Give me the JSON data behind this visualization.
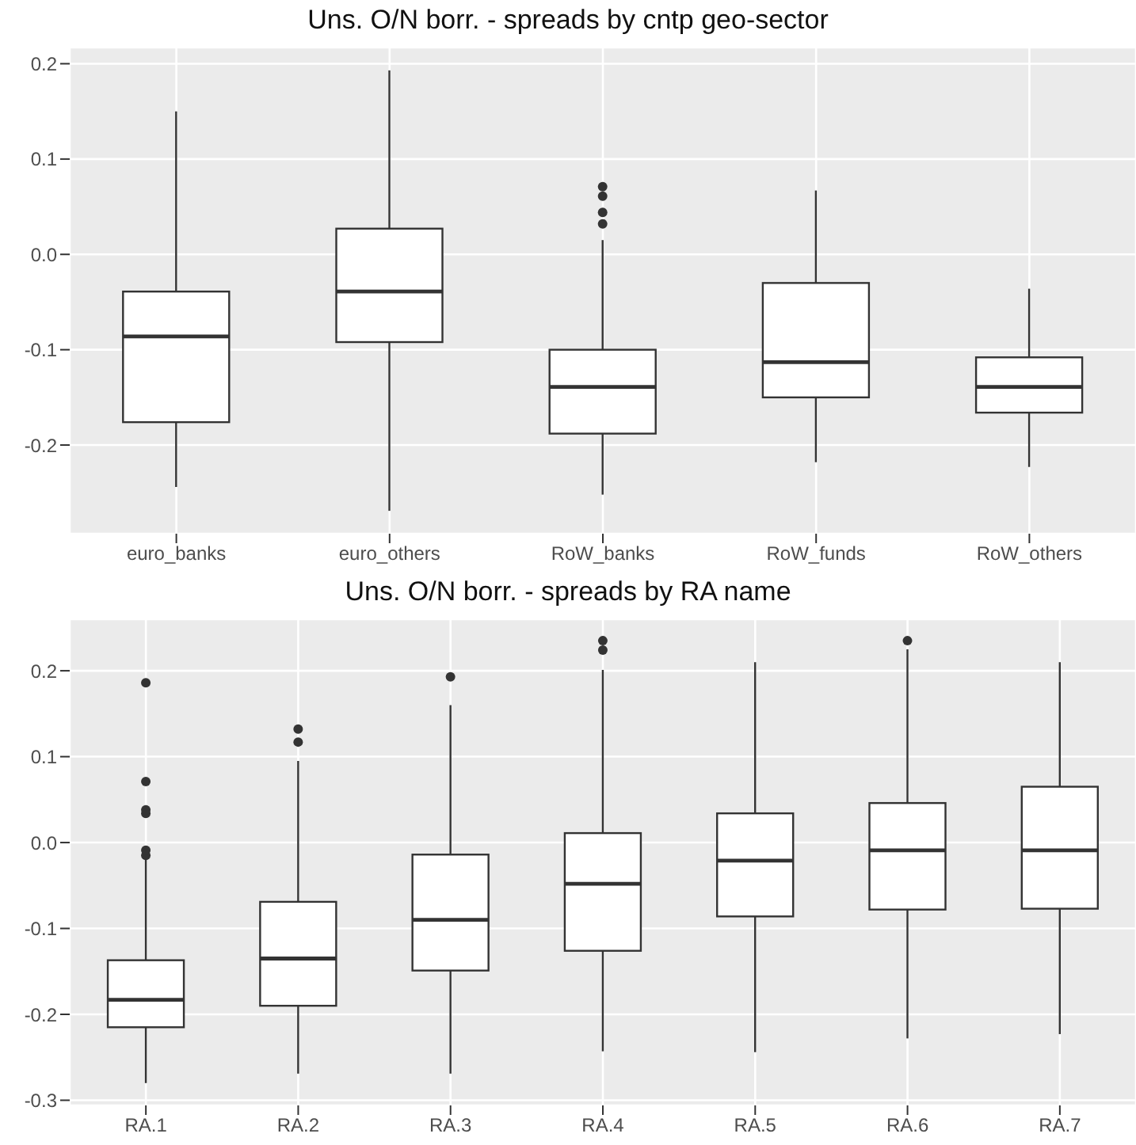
{
  "chart_data": [
    {
      "type": "box",
      "title": "Uns. O/N borr. - spreads by cntp geo-sector",
      "categories": [
        "euro_banks",
        "euro_others",
        "RoW_banks",
        "RoW_funds",
        "RoW_others"
      ],
      "boxes": [
        {
          "low": -0.244,
          "q1": -0.176,
          "median": -0.086,
          "q3": -0.039,
          "high": 0.15
        },
        {
          "low": -0.269,
          "q1": -0.092,
          "median": -0.039,
          "q3": 0.027,
          "high": 0.193
        },
        {
          "low": -0.252,
          "q1": -0.188,
          "median": -0.139,
          "q3": -0.1,
          "high": 0.015,
          "outliers": [
            0.032,
            0.044,
            0.061,
            0.071
          ]
        },
        {
          "low": -0.218,
          "q1": -0.15,
          "median": -0.113,
          "q3": -0.03,
          "high": 0.067
        },
        {
          "low": -0.223,
          "q1": -0.166,
          "median": -0.139,
          "q3": -0.108,
          "high": -0.036
        }
      ],
      "ylim": [
        -0.293,
        0.217
      ],
      "yticks": [
        -0.2,
        -0.1,
        {
          "value": 0,
          "label": "0.0"
        },
        0.1,
        0.2
      ],
      "grid": true
    },
    {
      "type": "box",
      "title": "Uns. O/N borr. - spreads by RA name",
      "categories": [
        "RA.1",
        "RA.2",
        "RA.3",
        "RA.4",
        "RA.5",
        "RA.6",
        "RA.7"
      ],
      "boxes": [
        {
          "low": -0.28,
          "q1": -0.215,
          "median": -0.183,
          "q3": -0.137,
          "high": -0.019,
          "outliers": [
            -0.015,
            -0.009,
            0.034,
            0.038,
            0.071,
            0.186
          ]
        },
        {
          "low": -0.269,
          "q1": -0.19,
          "median": -0.135,
          "q3": -0.069,
          "high": 0.095,
          "outliers": [
            0.117,
            0.132
          ]
        },
        {
          "low": -0.269,
          "q1": -0.149,
          "median": -0.09,
          "q3": -0.014,
          "high": 0.16,
          "outliers": [
            0.193
          ]
        },
        {
          "low": -0.243,
          "q1": -0.126,
          "median": -0.048,
          "q3": 0.011,
          "high": 0.201,
          "outliers": [
            0.224,
            0.235
          ]
        },
        {
          "low": -0.244,
          "q1": -0.086,
          "median": -0.021,
          "q3": 0.034,
          "high": 0.21
        },
        {
          "low": -0.228,
          "q1": -0.078,
          "median": -0.009,
          "q3": 0.046,
          "high": 0.225,
          "outliers": [
            0.235
          ]
        },
        {
          "low": -0.223,
          "q1": -0.077,
          "median": -0.009,
          "q3": 0.065,
          "high": 0.21
        }
      ],
      "ylim": [
        -0.306,
        0.26
      ],
      "yticks": [
        -0.3,
        -0.2,
        -0.1,
        {
          "value": 0,
          "label": "0.0"
        },
        0.1,
        0.2
      ],
      "grid": true
    }
  ]
}
